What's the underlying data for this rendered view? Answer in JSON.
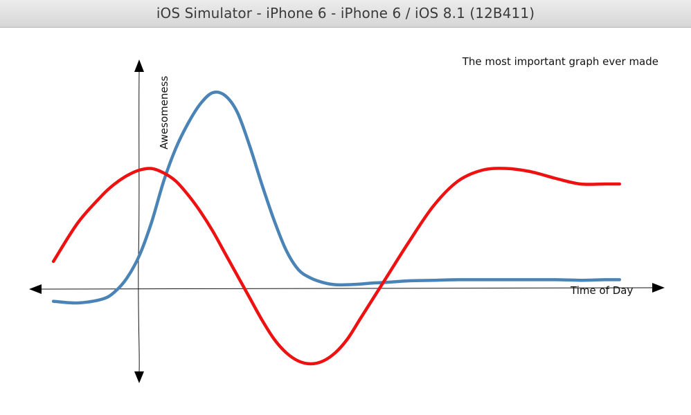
{
  "window": {
    "title": "iOS Simulator - iPhone 6 - iPhone 6 / iOS 8.1 (12B411)"
  },
  "chart_data": {
    "type": "line",
    "title": "The most important graph ever made",
    "xlabel": "Time of Day",
    "ylabel": "Awesomeness",
    "grid": false,
    "legend": "none",
    "x": [
      -3.5,
      -2.5,
      -1.5,
      -1.0,
      -0.5,
      0.0,
      0.5,
      1.0,
      1.5,
      2.0,
      2.5,
      3.0,
      3.5,
      4.0,
      4.5,
      5.0,
      5.5,
      6.0,
      6.5,
      7.0,
      7.5,
      8.0,
      8.5,
      9.0,
      9.5,
      10.0,
      11.0,
      12.0,
      13.0,
      14.0,
      15.0,
      16.0,
      17.0,
      18.0,
      19.0,
      19.6
    ],
    "series": [
      {
        "color": "#4a83b5",
        "values": [
          -0.22,
          -0.25,
          -0.18,
          -0.05,
          0.2,
          0.6,
          1.2,
          1.95,
          2.55,
          3.0,
          3.35,
          3.55,
          3.5,
          3.2,
          2.6,
          1.9,
          1.25,
          0.7,
          0.35,
          0.2,
          0.12,
          0.08,
          0.08,
          0.09,
          0.11,
          0.12,
          0.15,
          0.16,
          0.17,
          0.17,
          0.17,
          0.17,
          0.17,
          0.16,
          0.17,
          0.17
        ]
      },
      {
        "color": "#ee1111",
        "values": [
          0.5,
          1.2,
          1.7,
          1.9,
          2.05,
          2.15,
          2.18,
          2.1,
          1.95,
          1.7,
          1.4,
          1.05,
          0.65,
          0.25,
          -0.15,
          -0.55,
          -0.9,
          -1.15,
          -1.3,
          -1.35,
          -1.3,
          -1.15,
          -0.9,
          -0.55,
          -0.2,
          0.15,
          0.85,
          1.5,
          1.95,
          2.15,
          2.18,
          2.12,
          2.0,
          1.9,
          1.9,
          1.9
        ]
      }
    ]
  }
}
